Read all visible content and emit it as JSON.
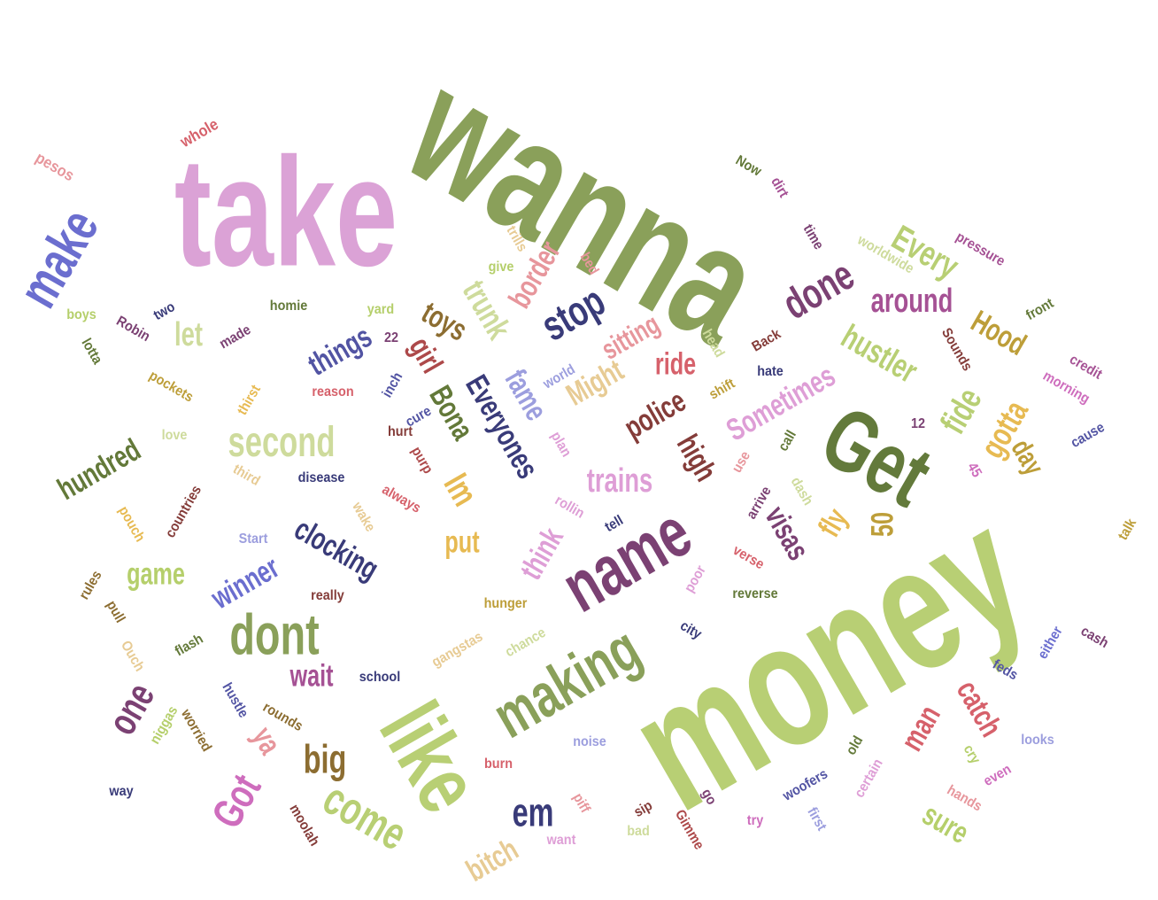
{
  "words": [
    {
      "text": "wanna",
      "color": "#8aa05a"
    },
    {
      "text": "take",
      "color": "#dba2d6"
    },
    {
      "text": "money",
      "color": "#b8cf74"
    },
    {
      "text": "like",
      "color": "#b8cf74"
    },
    {
      "text": "Get",
      "color": "#637a3b"
    },
    {
      "text": "name",
      "color": "#7b4173"
    },
    {
      "text": "making",
      "color": "#8aa05a"
    },
    {
      "text": "dont",
      "color": "#8aa05a"
    },
    {
      "text": "second",
      "color": "#cedb9c"
    },
    {
      "text": "make",
      "color": "#6b6ecf"
    },
    {
      "text": "em",
      "color": "#393b79"
    },
    {
      "text": "big",
      "color": "#8c6d31"
    },
    {
      "text": "come",
      "color": "#b8cf74"
    },
    {
      "text": "one",
      "color": "#7b4173"
    },
    {
      "text": "Got",
      "color": "#ce6dbd"
    },
    {
      "text": "done",
      "color": "#7b4173"
    },
    {
      "text": "stop",
      "color": "#393b79"
    },
    {
      "text": "Every",
      "color": "#b8cf74"
    },
    {
      "text": "around",
      "color": "#a55194"
    },
    {
      "text": "hustler",
      "color": "#b8cf74"
    },
    {
      "text": "Hood",
      "color": "#bd9e39"
    },
    {
      "text": "fide",
      "color": "#b8cf74"
    },
    {
      "text": "gotta",
      "color": "#e7ba52"
    },
    {
      "text": "Sometimes",
      "color": "#de9ed6"
    },
    {
      "text": "police",
      "color": "#843c39"
    },
    {
      "text": "high",
      "color": "#843c39"
    },
    {
      "text": "trains",
      "color": "#de9ed6"
    },
    {
      "text": "Might",
      "color": "#e7cb94"
    },
    {
      "text": "sitting",
      "color": "#e7969c"
    },
    {
      "text": "ride",
      "color": "#d6616b"
    },
    {
      "text": "fame",
      "color": "#9c9ede"
    },
    {
      "text": "Everyones",
      "color": "#393b79"
    },
    {
      "text": "Bona",
      "color": "#637939"
    },
    {
      "text": "girl",
      "color": "#ad494a"
    },
    {
      "text": "toys",
      "color": "#8c6d31"
    },
    {
      "text": "border",
      "color": "#e7969c"
    },
    {
      "text": "trunk",
      "color": "#cedb9c"
    },
    {
      "text": "things",
      "color": "#5254a3"
    },
    {
      "text": "let",
      "color": "#cedb9c"
    },
    {
      "text": "hundred",
      "color": "#637939"
    },
    {
      "text": "Im",
      "color": "#e7ba52"
    },
    {
      "text": "put",
      "color": "#e7ba52"
    },
    {
      "text": "clocking",
      "color": "#393b79"
    },
    {
      "text": "game",
      "color": "#b5cf6b"
    },
    {
      "text": "winner",
      "color": "#6b6ecf"
    },
    {
      "text": "wait",
      "color": "#a55194"
    },
    {
      "text": "think",
      "color": "#de9ed6"
    },
    {
      "text": "visas",
      "color": "#7b4173"
    },
    {
      "text": "fly",
      "color": "#e7ba52"
    },
    {
      "text": "50",
      "color": "#bd9e39"
    },
    {
      "text": "day",
      "color": "#bd9e39"
    },
    {
      "text": "catch",
      "color": "#d6616b"
    },
    {
      "text": "man",
      "color": "#d6616b"
    },
    {
      "text": "sure",
      "color": "#b5cf6b"
    },
    {
      "text": "bitch",
      "color": "#e7cb94"
    },
    {
      "text": "ya",
      "color": "#e7969c"
    },
    {
      "text": "pesos",
      "color": "#e7969c"
    },
    {
      "text": "whole",
      "color": "#d6616b"
    },
    {
      "text": "Now",
      "color": "#637939"
    },
    {
      "text": "dirt",
      "color": "#a55194"
    },
    {
      "text": "time",
      "color": "#7b4173"
    },
    {
      "text": "worldwide",
      "color": "#cedb9c"
    },
    {
      "text": "pressure",
      "color": "#a55194"
    },
    {
      "text": "front",
      "color": "#637939"
    },
    {
      "text": "trills",
      "color": "#e7cb94"
    },
    {
      "text": "bed",
      "color": "#e7969c"
    },
    {
      "text": "give",
      "color": "#b5cf6b"
    },
    {
      "text": "boys",
      "color": "#b5cf6b"
    },
    {
      "text": "two",
      "color": "#393b79"
    },
    {
      "text": "homie",
      "color": "#637939"
    },
    {
      "text": "yard",
      "color": "#b5cf6b"
    },
    {
      "text": "lotta",
      "color": "#637939"
    },
    {
      "text": "Robin",
      "color": "#7b4173"
    },
    {
      "text": "made",
      "color": "#7b4173"
    },
    {
      "text": "22",
      "color": "#7b4173"
    },
    {
      "text": "pockets",
      "color": "#bd9e39"
    },
    {
      "text": "thirst",
      "color": "#e7ba52"
    },
    {
      "text": "reason",
      "color": "#d6616b"
    },
    {
      "text": "inch",
      "color": "#5254a3"
    },
    {
      "text": "world",
      "color": "#9c9ede"
    },
    {
      "text": "cure",
      "color": "#5254a3"
    },
    {
      "text": "head",
      "color": "#cedb9c"
    },
    {
      "text": "shift",
      "color": "#bd9e39"
    },
    {
      "text": "Back",
      "color": "#843c39"
    },
    {
      "text": "hate",
      "color": "#393b79"
    },
    {
      "text": "Sounds",
      "color": "#843c39"
    },
    {
      "text": "credit",
      "color": "#a55194"
    },
    {
      "text": "morning",
      "color": "#ce6dbd"
    },
    {
      "text": "cause",
      "color": "#5254a3"
    },
    {
      "text": "love",
      "color": "#cedb9c"
    },
    {
      "text": "hurt",
      "color": "#843c39"
    },
    {
      "text": "purp",
      "color": "#ad494a"
    },
    {
      "text": "plan",
      "color": "#de9ed6"
    },
    {
      "text": "disease",
      "color": "#393b79"
    },
    {
      "text": "third",
      "color": "#e7cb94"
    },
    {
      "text": "countries",
      "color": "#843c39"
    },
    {
      "text": "always",
      "color": "#d6616b"
    },
    {
      "text": "wake",
      "color": "#e7cb94"
    },
    {
      "text": "pouch",
      "color": "#e7ba52"
    },
    {
      "text": "Start",
      "color": "#9c9ede"
    },
    {
      "text": "rollin",
      "color": "#de9ed6"
    },
    {
      "text": "tell",
      "color": "#393b79"
    },
    {
      "text": "use",
      "color": "#e7969c"
    },
    {
      "text": "call",
      "color": "#637939"
    },
    {
      "text": "dash",
      "color": "#cedb9c"
    },
    {
      "text": "arrive",
      "color": "#7b4173"
    },
    {
      "text": "12",
      "color": "#7b4173"
    },
    {
      "text": "45",
      "color": "#ce6dbd"
    },
    {
      "text": "verse",
      "color": "#d6616b"
    },
    {
      "text": "talk",
      "color": "#bd9e39"
    },
    {
      "text": "poor",
      "color": "#de9ed6"
    },
    {
      "text": "reverse",
      "color": "#637939"
    },
    {
      "text": "rules",
      "color": "#8c6d31"
    },
    {
      "text": "really",
      "color": "#843c39"
    },
    {
      "text": "hunger",
      "color": "#bd9e39"
    },
    {
      "text": "pull",
      "color": "#8c6d31"
    },
    {
      "text": "flash",
      "color": "#637939"
    },
    {
      "text": "Ouch",
      "color": "#e7cb94"
    },
    {
      "text": "city",
      "color": "#393b79"
    },
    {
      "text": "chance",
      "color": "#cedb9c"
    },
    {
      "text": "gangstas",
      "color": "#e7cb94"
    },
    {
      "text": "cash",
      "color": "#7b4173"
    },
    {
      "text": "either",
      "color": "#6b6ecf"
    },
    {
      "text": "feds",
      "color": "#5254a3"
    },
    {
      "text": "school",
      "color": "#393b79"
    },
    {
      "text": "hustle",
      "color": "#5254a3"
    },
    {
      "text": "rounds",
      "color": "#8c6d31"
    },
    {
      "text": "niggas",
      "color": "#b5cf6b"
    },
    {
      "text": "worried",
      "color": "#8c6d31"
    },
    {
      "text": "noise",
      "color": "#9c9ede"
    },
    {
      "text": "burn",
      "color": "#d6616b"
    },
    {
      "text": "way",
      "color": "#393b79"
    },
    {
      "text": "moolah",
      "color": "#843c39"
    },
    {
      "text": "want",
      "color": "#de9ed6"
    },
    {
      "text": "piff",
      "color": "#e7969c"
    },
    {
      "text": "sip",
      "color": "#843c39"
    },
    {
      "text": "bad",
      "color": "#cedb9c"
    },
    {
      "text": "Gimme",
      "color": "#ad494a"
    },
    {
      "text": "go",
      "color": "#7b4173"
    },
    {
      "text": "try",
      "color": "#ce6dbd"
    },
    {
      "text": "woofers",
      "color": "#5254a3"
    },
    {
      "text": "first",
      "color": "#9c9ede"
    },
    {
      "text": "certain",
      "color": "#de9ed6"
    },
    {
      "text": "old",
      "color": "#637939"
    },
    {
      "text": "looks",
      "color": "#9c9ede"
    },
    {
      "text": "cry",
      "color": "#b5cf6b"
    },
    {
      "text": "even",
      "color": "#ce6dbd"
    },
    {
      "text": "hands",
      "color": "#e7969c"
    }
  ]
}
